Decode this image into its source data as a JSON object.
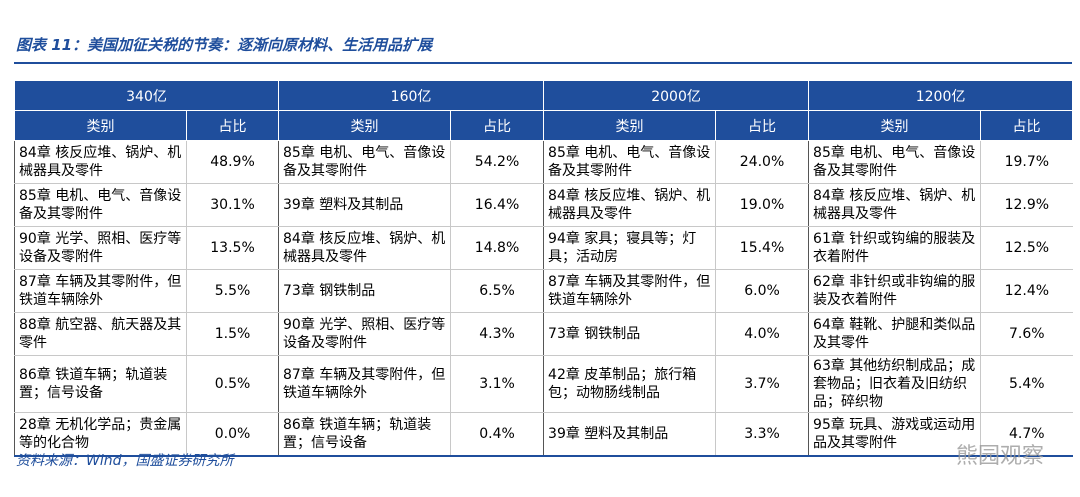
{
  "header": {
    "title": "图表 11：美国加征关税的节奏：逐渐向原材料、生活用品扩展"
  },
  "table": {
    "groups": [
      "340亿",
      "160亿",
      "2000亿",
      "1200亿"
    ],
    "subheaders": [
      "类别",
      "占比",
      "类别",
      "占比",
      "类别",
      "占比",
      "类别",
      "占比"
    ],
    "rows": [
      [
        "84章 核反应堆、锅炉、机械器具及零件",
        "48.9%",
        "85章 电机、电气、音像设备及其零附件",
        "54.2%",
        "85章 电机、电气、音像设备及其零附件",
        "24.0%",
        "85章 电机、电气、音像设备及其零附件",
        "19.7%"
      ],
      [
        "85章 电机、电气、音像设备及其零附件",
        "30.1%",
        "39章 塑料及其制品",
        "16.4%",
        "84章 核反应堆、锅炉、机械器具及零件",
        "19.0%",
        "84章 核反应堆、锅炉、机械器具及零件",
        "12.9%"
      ],
      [
        "90章 光学、照相、医疗等设备及零附件",
        "13.5%",
        "84章 核反应堆、锅炉、机械器具及零件",
        "14.8%",
        "94章 家具；寝具等；灯具；活动房",
        "15.4%",
        "61章 针织或钩编的服装及衣着附件",
        "12.5%"
      ],
      [
        "87章 车辆及其零附件，但铁道车辆除外",
        "5.5%",
        "73章 钢铁制品",
        "6.5%",
        "87章 车辆及其零附件，但铁道车辆除外",
        "6.0%",
        "62章 非针织或非钩编的服装及衣着附件",
        "12.4%"
      ],
      [
        "88章 航空器、航天器及其零件",
        "1.5%",
        "90章 光学、照相、医疗等设备及零附件",
        "4.3%",
        "73章 钢铁制品",
        "4.0%",
        "64章 鞋靴、护腿和类似品及其零件",
        "7.6%"
      ],
      [
        "86章 铁道车辆；轨道装置；信号设备",
        "0.5%",
        "87章 车辆及其零附件，但铁道车辆除外",
        "3.1%",
        "42章 皮革制品；旅行箱包；动物肠线制品",
        "3.7%",
        "63章 其他纺织制成品；成套物品；旧衣着及旧纺织品；碎织物",
        "5.4%"
      ],
      [
        "28章 无机化学品；贵金属等的化合物",
        "0.0%",
        "86章 铁道车辆；轨道装置；信号设备",
        "0.4%",
        "39章 塑料及其制品",
        "3.3%",
        "95章 玩具、游戏或运动用品及其零附件",
        "4.7%"
      ]
    ]
  },
  "footer": {
    "source": "资料来源：Wind，国盛证券研究所",
    "watermark": "熊园观察"
  }
}
